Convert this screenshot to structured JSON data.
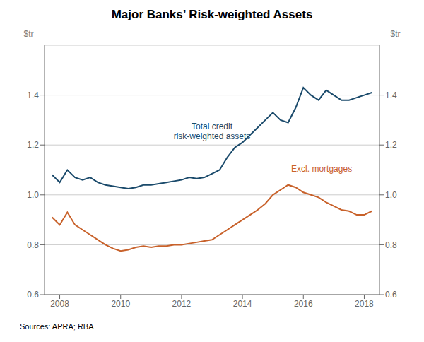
{
  "chart_data": {
    "type": "line",
    "title": "Major Banks’ Risk-weighted Assets",
    "ylabel": "$tr",
    "y2label": "$tr",
    "source": "Sources: APRA; RBA",
    "x": [
      2007.75,
      2008.0,
      2008.25,
      2008.5,
      2008.75,
      2009.0,
      2009.25,
      2009.5,
      2009.75,
      2010.0,
      2010.25,
      2010.5,
      2010.75,
      2011.0,
      2011.25,
      2011.5,
      2011.75,
      2012.0,
      2012.25,
      2012.5,
      2012.75,
      2013.0,
      2013.25,
      2013.5,
      2013.75,
      2014.0,
      2014.25,
      2014.5,
      2014.75,
      2015.0,
      2015.25,
      2015.5,
      2015.75,
      2016.0,
      2016.25,
      2016.5,
      2016.75,
      2017.0,
      2017.25,
      2017.5,
      2017.75,
      2018.0,
      2018.25
    ],
    "series": [
      {
        "color": "#1a4a6b",
        "values": [
          1.08,
          1.05,
          1.1,
          1.07,
          1.06,
          1.07,
          1.05,
          1.04,
          1.035,
          1.03,
          1.025,
          1.03,
          1.04,
          1.04,
          1.045,
          1.05,
          1.055,
          1.06,
          1.07,
          1.065,
          1.07,
          1.085,
          1.1,
          1.15,
          1.19,
          1.21,
          1.24,
          1.27,
          1.3,
          1.33,
          1.3,
          1.29,
          1.35,
          1.43,
          1.4,
          1.38,
          1.42,
          1.4,
          1.38,
          1.38,
          1.39,
          1.4,
          1.41
        ]
      },
      {
        "color": "#c8612a",
        "values": [
          0.91,
          0.88,
          0.93,
          0.88,
          0.86,
          0.84,
          0.82,
          0.8,
          0.785,
          0.775,
          0.78,
          0.79,
          0.795,
          0.79,
          0.795,
          0.795,
          0.8,
          0.8,
          0.805,
          0.81,
          0.815,
          0.82,
          0.84,
          0.86,
          0.88,
          0.9,
          0.92,
          0.94,
          0.965,
          1.0,
          1.02,
          1.04,
          1.03,
          1.01,
          1.0,
          0.99,
          0.97,
          0.955,
          0.94,
          0.935,
          0.92,
          0.92,
          0.935
        ]
      }
    ],
    "xlim": [
      2007.5,
      2018.5
    ],
    "xticks": [
      2008,
      2010,
      2012,
      2014,
      2016,
      2018
    ],
    "ylim": [
      0.6,
      1.6
    ],
    "yticks": [
      0.6,
      0.8,
      {
        "value": 1.0,
        "label": "1.0"
      },
      1.2,
      1.4
    ],
    "y2lim": [
      0.6,
      1.6
    ],
    "y2ticks": [
      0.6,
      0.8,
      {
        "value": 1.0,
        "label": "1.0"
      },
      1.2,
      1.4
    ],
    "grid": true,
    "annotations": [
      {
        "text": "Total credit\nrisk-weighted assets",
        "x": 2013.0,
        "y": 1.255,
        "color": "#1a4a6b"
      },
      {
        "text": "Excl. mortgages",
        "x": 2016.6,
        "y": 1.105,
        "color": "#c8612a"
      }
    ]
  }
}
